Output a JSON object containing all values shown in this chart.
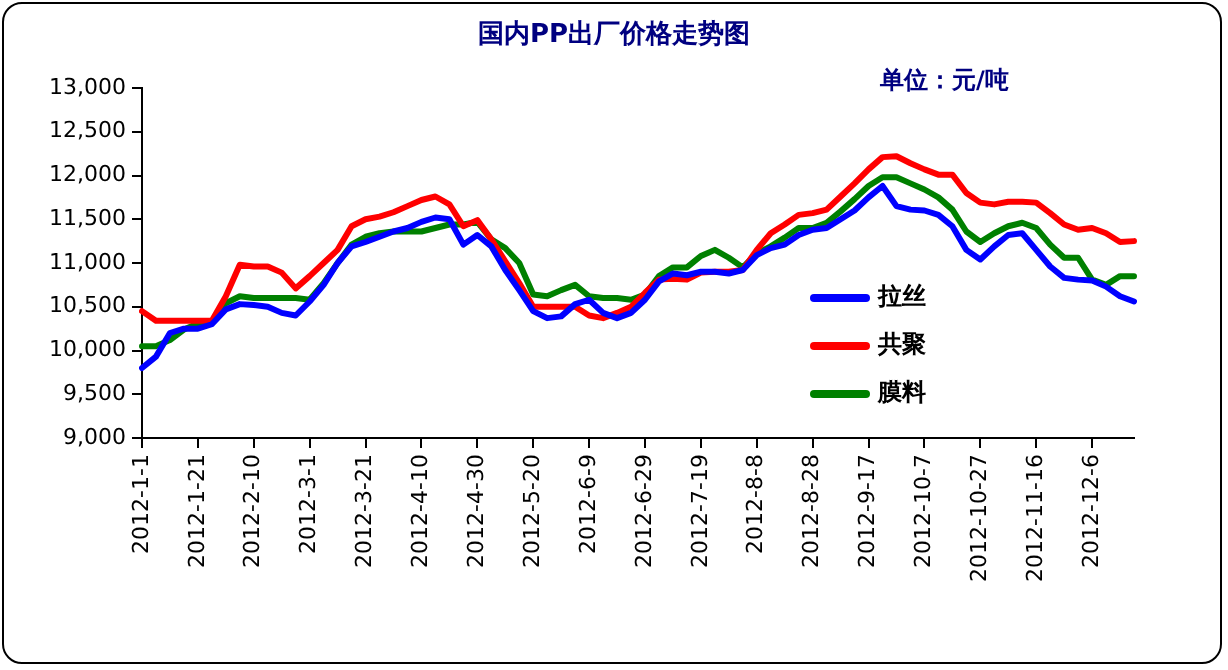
{
  "chart_data": {
    "type": "line",
    "title": "国内PP出厂价格走势图",
    "subtitle": "单位：元/吨",
    "categories": [
      "2012-1-1",
      null,
      null,
      null,
      "2012-1-21",
      null,
      null,
      null,
      "2012-2-10",
      null,
      null,
      null,
      "2012-3-1",
      null,
      null,
      null,
      "2012-3-21",
      null,
      null,
      null,
      "2012-4-10",
      null,
      null,
      null,
      "2012-4-30",
      null,
      null,
      null,
      "2012-5-20",
      null,
      null,
      null,
      "2012-6-9",
      null,
      null,
      null,
      "2012-6-29",
      null,
      null,
      null,
      "2012-7-19",
      null,
      null,
      null,
      "2012-8-8",
      null,
      null,
      null,
      "2012-8-28",
      null,
      null,
      null,
      "2012-9-17",
      null,
      null,
      null,
      "2012-10-7",
      null,
      null,
      null,
      "2012-10-27",
      null,
      null,
      null,
      "2012-11-16",
      null,
      null,
      null,
      "2012-12-6",
      null,
      null,
      null
    ],
    "series": [
      {
        "name": "拉丝",
        "color": "#0000ff",
        "values": [
          9800,
          9930,
          10200,
          10250,
          10250,
          10300,
          10470,
          10530,
          10520,
          10500,
          10430,
          10400,
          10560,
          10750,
          11000,
          11190,
          11240,
          11300,
          11360,
          11400,
          11470,
          11520,
          11500,
          11210,
          11320,
          11190,
          10920,
          10690,
          10450,
          10370,
          10390,
          10530,
          10580,
          10430,
          10370,
          10430,
          10580,
          10790,
          10880,
          10860,
          10900,
          10900,
          10880,
          10920,
          11090,
          11170,
          11210,
          11320,
          11380,
          11400,
          11500,
          11600,
          11750,
          11880,
          11650,
          11610,
          11600,
          11550,
          11420,
          11150,
          11040,
          11190,
          11320,
          11340,
          11150,
          10960,
          10830,
          10810,
          10800,
          10730,
          10620,
          10560
        ]
      },
      {
        "name": "共聚",
        "color": "#ff0000",
        "values": [
          10450,
          10340,
          10340,
          10340,
          10340,
          10340,
          10620,
          10980,
          10960,
          10960,
          10890,
          10710,
          10850,
          11000,
          11150,
          11420,
          11500,
          11530,
          11580,
          11650,
          11720,
          11760,
          11670,
          11420,
          11490,
          11270,
          11020,
          10770,
          10500,
          10500,
          10500,
          10500,
          10400,
          10370,
          10430,
          10500,
          10660,
          10810,
          10820,
          10810,
          10890,
          10900,
          10900,
          10920,
          11150,
          11340,
          11440,
          11550,
          11570,
          11610,
          11760,
          11910,
          12070,
          12210,
          12220,
          12140,
          12070,
          12010,
          12010,
          11800,
          11690,
          11670,
          11700,
          11700,
          11690,
          11570,
          11440,
          11380,
          11400,
          11340,
          11240,
          11250
        ]
      },
      {
        "name": "膜料",
        "color": "#008000",
        "values": [
          10050,
          10050,
          10120,
          10240,
          10310,
          10310,
          10540,
          10620,
          10600,
          10600,
          10600,
          10600,
          10580,
          10770,
          11000,
          11210,
          11300,
          11340,
          11360,
          11360,
          11360,
          11400,
          11440,
          11440,
          11470,
          11270,
          11170,
          11000,
          10640,
          10620,
          10690,
          10750,
          10620,
          10600,
          10600,
          10580,
          10640,
          10850,
          10950,
          10950,
          11080,
          11150,
          11060,
          10950,
          11110,
          11190,
          11290,
          11400,
          11400,
          11460,
          11590,
          11730,
          11880,
          11980,
          11980,
          11910,
          11840,
          11750,
          11610,
          11360,
          11240,
          11340,
          11420,
          11460,
          11400,
          11210,
          11060,
          11060,
          10810,
          10750,
          10850,
          10850
        ]
      }
    ],
    "ylim": [
      9000,
      13000
    ],
    "yticks": [
      {
        "value": 9000,
        "label": "9,000"
      },
      {
        "value": 9500,
        "label": "9,500"
      },
      {
        "value": 10000,
        "label": "10,000"
      },
      {
        "value": 10500,
        "label": "10,500"
      },
      {
        "value": 11000,
        "label": "11,000"
      },
      {
        "value": 11500,
        "label": "11,500"
      },
      {
        "value": 12000,
        "label": "12,000"
      },
      {
        "value": 12500,
        "label": "12,500"
      },
      {
        "value": 13000,
        "label": "13,000"
      }
    ],
    "legend": "bottom right",
    "marker": "none",
    "line_style": "solid"
  }
}
